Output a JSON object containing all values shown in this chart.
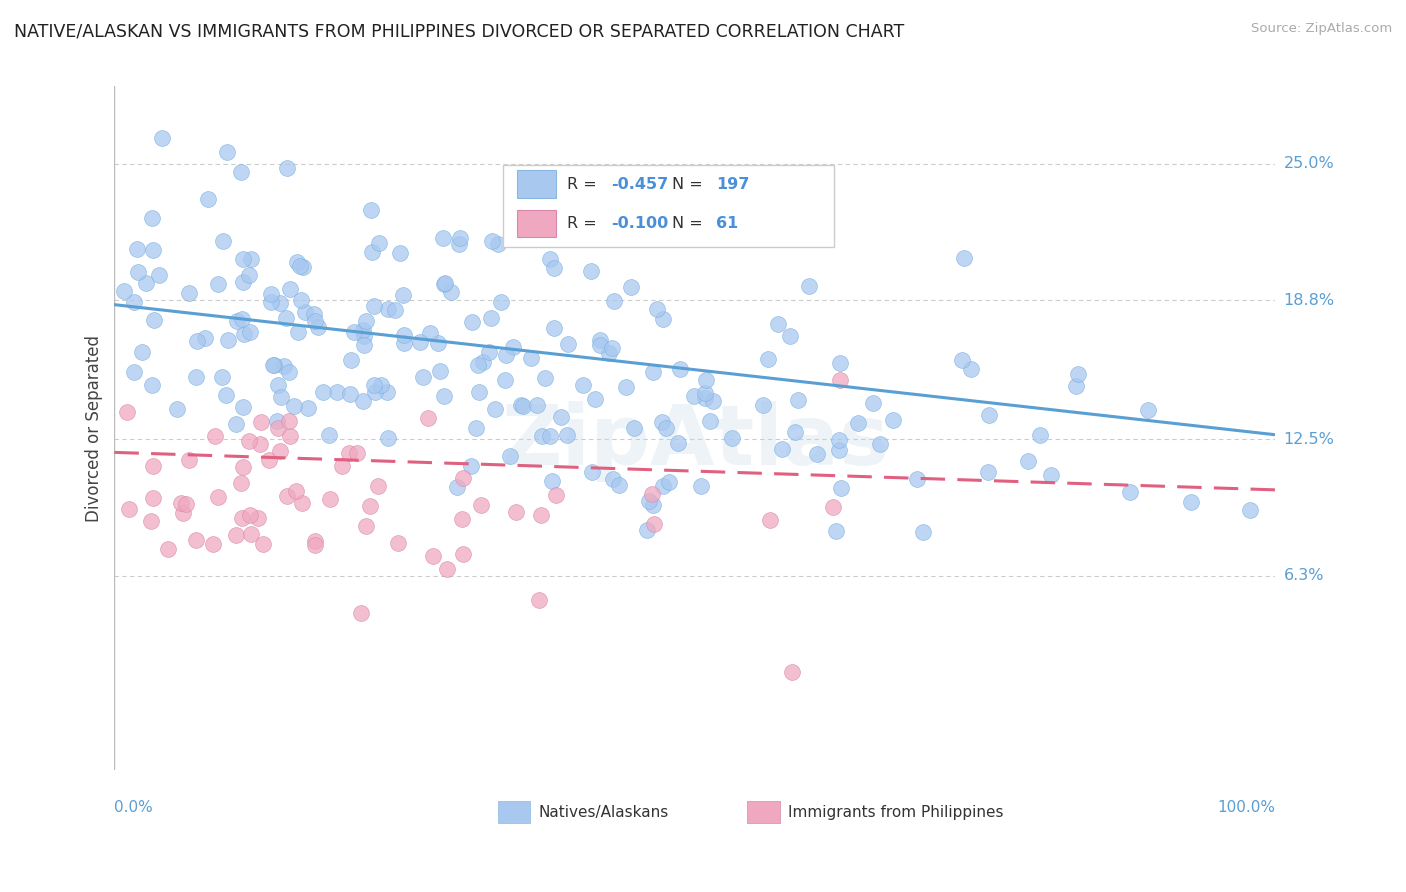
{
  "title": "NATIVE/ALASKAN VS IMMIGRANTS FROM PHILIPPINES DIVORCED OR SEPARATED CORRELATION CHART",
  "source": "Source: ZipAtlas.com",
  "ylabel": "Divorced or Separated",
  "legend_label1": "Natives/Alaskans",
  "legend_label2": "Immigrants from Philippines",
  "R1": -0.457,
  "N1": 197,
  "R2": -0.1,
  "N2": 61,
  "y_ticks": [
    0.063,
    0.125,
    0.188,
    0.25
  ],
  "y_tick_labels": [
    "6.3%",
    "12.5%",
    "18.8%",
    "25.0%"
  ],
  "xlim": [
    0.0,
    1.0
  ],
  "ylim": [
    -0.025,
    0.285
  ],
  "blue_color": "#a8c8f0",
  "pink_color": "#f0a8c0",
  "blue_line_color": "#5a9fd4",
  "pink_line_color": "#e06080",
  "background_color": "#ffffff",
  "grid_color": "#cccccc",
  "trend1_y_start": 0.186,
  "trend1_y_end": 0.127,
  "trend2_y_start": 0.119,
  "trend2_y_end": 0.102,
  "watermark": "ZipAtlas",
  "seed_blue": 42,
  "seed_pink": 99
}
